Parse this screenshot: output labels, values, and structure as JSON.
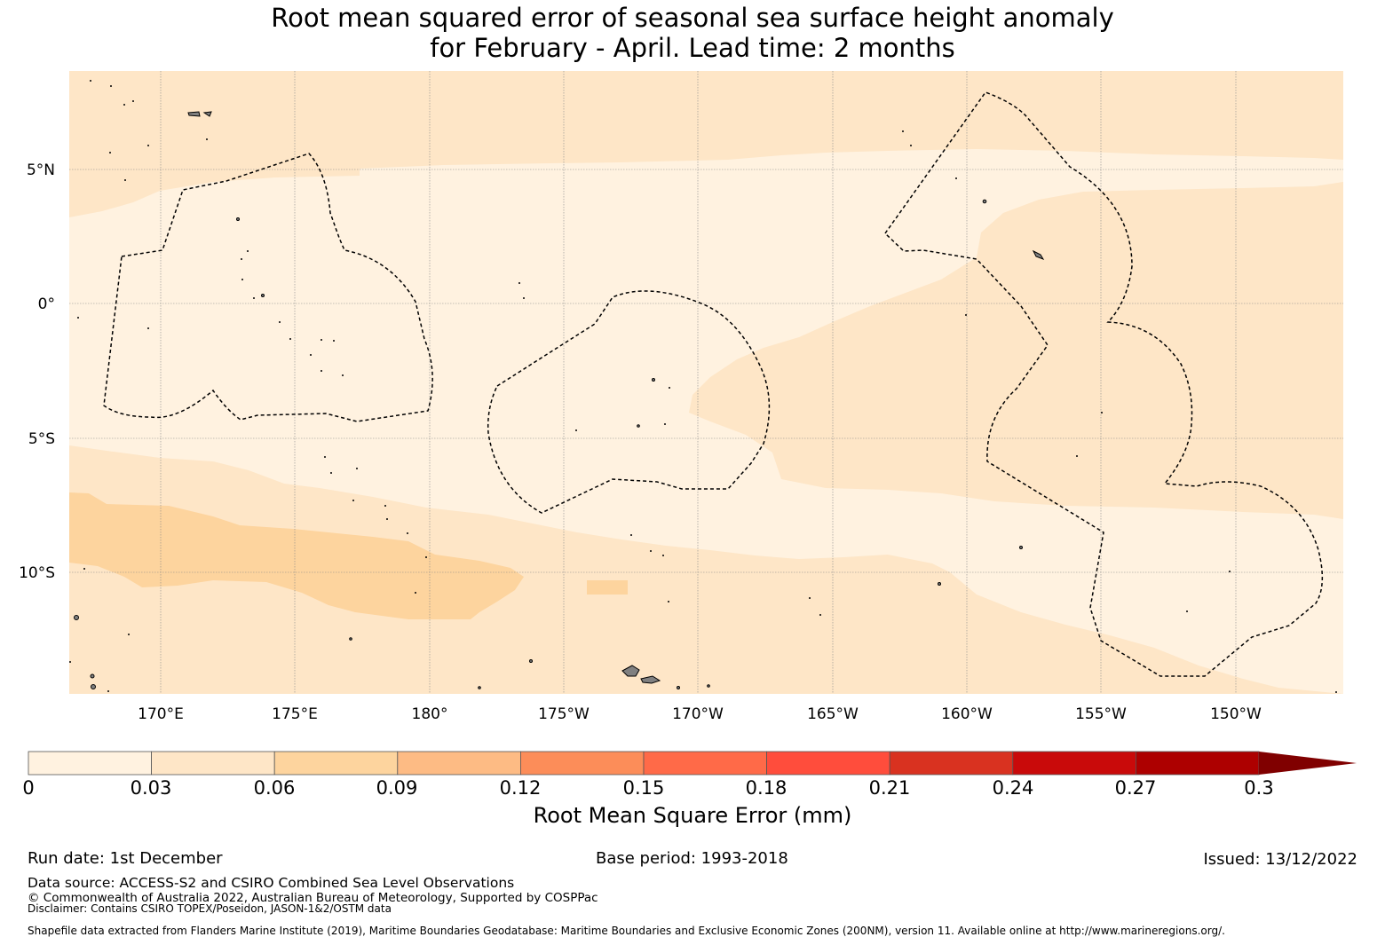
{
  "title": {
    "line1": "Root mean squared error of seasonal sea surface height anomaly",
    "line2": "for February - April. Lead time: 2 months"
  },
  "map": {
    "lat_labels": [
      "5°N",
      "0°",
      "5°S",
      "10°S"
    ],
    "lon_labels": [
      "170°E",
      "175°E",
      "180°",
      "175°W",
      "170°W",
      "165°W",
      "160°W",
      "155°W",
      "150°W"
    ],
    "land_color": "#808080",
    "ocean_colors": {
      "band_0_003": "#fff2e0",
      "band_003_006": "#fee6c7",
      "band_006_009": "#fdd49e"
    }
  },
  "colorbar": {
    "label": "Root Mean Square Error (mm)",
    "ticks": [
      "0",
      "0.03",
      "0.06",
      "0.09",
      "0.12",
      "0.15",
      "0.18",
      "0.21",
      "0.24",
      "0.27",
      "0.3"
    ],
    "colors": [
      "#fff2e0",
      "#fee6c7",
      "#fdd49e",
      "#fdbb84",
      "#fc8d59",
      "#ff6a48",
      "#ff4d3c",
      "#d93220",
      "#c90a0a",
      "#ad0000"
    ],
    "extend_color": "#800000"
  },
  "footer": {
    "run_date": "Run date: 1st December",
    "base_period": "Base period: 1993-2018",
    "issued": "Issued: 13/12/2022",
    "data_source": "Data source: ACCESS-S2 and CSIRO Combined Sea Level Observations",
    "copyright": "© Commonwealth of Australia 2022, Australian Bureau of Meteorology, Supported by COSPPac",
    "disclaimer": "Disclaimer: Contains CSIRO TOPEX/Poseidon, JASON-1&2/OSTM data",
    "shapefile": "Shapefile data extracted from Flanders Marine Institute (2019), Maritime Boundaries Geodatabase: Maritime Boundaries and Exclusive Economic Zones (200NM), version 11. Available online at http://www.marineregions.org/."
  }
}
